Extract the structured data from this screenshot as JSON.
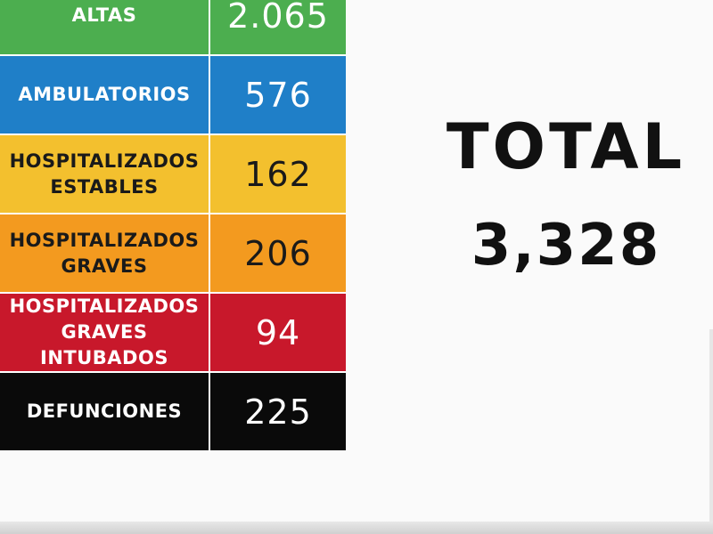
{
  "chart_data": {
    "type": "table",
    "rows": [
      {
        "label": "ALTAS",
        "value": "2.065",
        "color": "#4cae4f"
      },
      {
        "label": "AMBULATORIOS",
        "value": "576",
        "color": "#1f7fc8"
      },
      {
        "label": "HOSPITALIZADOS ESTABLES",
        "value": "162",
        "color": "#f3c02e"
      },
      {
        "label": "HOSPITALIZADOS GRAVES",
        "value": "206",
        "color": "#f39a1f"
      },
      {
        "label": "HOSPITALIZADOS GRAVES INTUBADOS",
        "value": "94",
        "color": "#c8182b"
      },
      {
        "label": "DEFUNCIONES",
        "value": "225",
        "color": "#0a0a0a"
      }
    ]
  },
  "total": {
    "title": "TOTAL",
    "value": "3,328"
  }
}
